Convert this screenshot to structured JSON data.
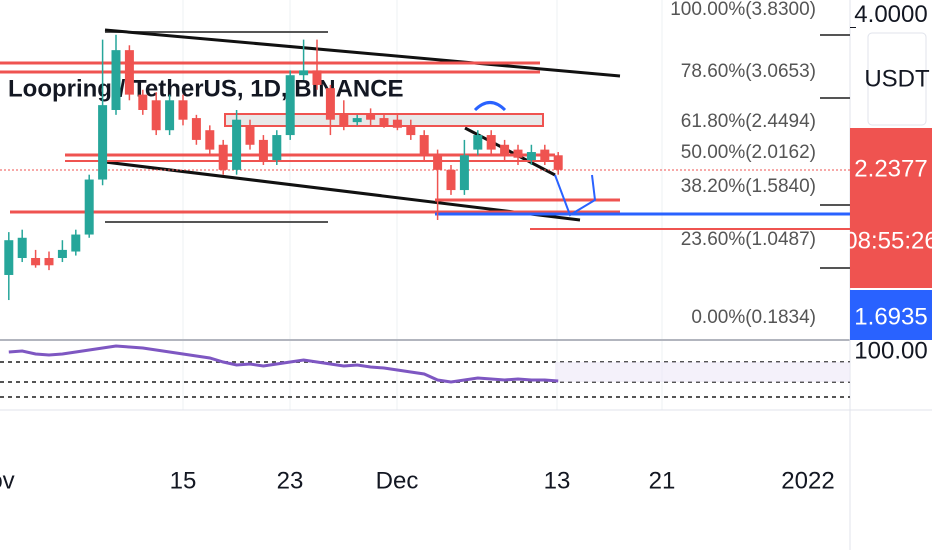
{
  "chart_data": {
    "type": "candlestick",
    "title": "Loopring / TetherUS, 1D, BINANCE",
    "ylim": [
      0.136,
      4.34
    ],
    "yticks": [
      {
        "value": 4,
        "label": "4.0000"
      }
    ],
    "currency": "USDT",
    "price_tags": [
      {
        "label": "2.2377",
        "countdown": "08:55:26"
      },
      {
        "label": "1.6935"
      }
    ],
    "rsi_tick": "100.00",
    "x_axis_labels": [
      "ov",
      "15",
      "23",
      "Dec",
      "13",
      "21",
      "2022"
    ],
    "fib_labels": [
      "100.00%(3.8300)",
      "78.60%(3.0653)",
      "61.80%(2.4494)",
      "50.00%(2.0162)",
      "38.20%(1.5840)",
      "23.60%(1.0487)",
      "0.00%(0.1834)"
    ],
    "up_color": "#26a69a",
    "down_color": "#ef5350",
    "ohlc": [
      [
        0.94,
        1.47,
        0.63,
        1.37
      ],
      [
        1.15,
        1.5,
        1.1,
        1.4
      ],
      [
        1.15,
        1.25,
        1.03,
        1.06
      ],
      [
        1.15,
        1.23,
        1.0,
        1.06
      ],
      [
        1.15,
        1.37,
        1.1,
        1.25
      ],
      [
        1.23,
        1.5,
        1.18,
        1.44
      ],
      [
        1.44,
        2.18,
        1.4,
        2.12
      ],
      [
        2.12,
        3.85,
        2.05,
        3.04
      ],
      [
        2.98,
        3.91,
        2.92,
        3.72
      ],
      [
        3.72,
        3.78,
        3.1,
        3.17
      ],
      [
        3.17,
        3.23,
        2.92,
        2.98
      ],
      [
        3.1,
        3.2,
        2.67,
        2.73
      ],
      [
        2.73,
        3.17,
        2.67,
        3.1
      ],
      [
        3.1,
        3.17,
        2.79,
        2.86
      ],
      [
        2.88,
        2.92,
        2.55,
        2.61
      ],
      [
        2.73,
        2.79,
        2.42,
        2.49
      ],
      [
        2.55,
        2.61,
        2.18,
        2.24
      ],
      [
        2.24,
        2.98,
        2.18,
        2.86
      ],
      [
        2.79,
        2.86,
        2.49,
        2.55
      ],
      [
        2.61,
        2.67,
        2.3,
        2.36
      ],
      [
        2.36,
        2.73,
        2.3,
        2.67
      ],
      [
        2.67,
        3.47,
        2.61,
        3.41
      ],
      [
        3.41,
        3.85,
        3.35,
        3.47
      ],
      [
        3.47,
        3.85,
        3.23,
        3.29
      ],
      [
        3.25,
        3.29,
        2.67,
        2.86
      ],
      [
        2.92,
        3.1,
        2.73,
        2.79
      ],
      [
        2.83,
        2.92,
        2.79,
        2.88
      ],
      [
        2.92,
        3.0,
        2.79,
        2.86
      ],
      [
        2.88,
        2.92,
        2.76,
        2.79
      ],
      [
        2.86,
        2.92,
        2.73,
        2.76
      ],
      [
        2.79,
        2.86,
        2.61,
        2.67
      ],
      [
        2.67,
        2.73,
        2.36,
        2.42
      ],
      [
        2.42,
        2.49,
        1.62,
        2.24
      ],
      [
        2.24,
        2.3,
        1.93,
        1.99
      ],
      [
        1.99,
        2.61,
        1.93,
        2.42
      ],
      [
        2.49,
        2.73,
        2.42,
        2.67
      ],
      [
        2.67,
        2.73,
        2.42,
        2.49
      ],
      [
        2.55,
        2.61,
        2.36,
        2.42
      ],
      [
        2.49,
        2.55,
        2.3,
        2.39
      ],
      [
        2.36,
        2.55,
        2.3,
        2.46
      ],
      [
        2.49,
        2.55,
        2.3,
        2.36
      ],
      [
        2.42,
        2.46,
        2.18,
        2.24
      ]
    ],
    "rsi": {
      "color": "#7e57c2",
      "ylim": [
        20,
        80
      ],
      "values": [
        68,
        69,
        66,
        65,
        66,
        68,
        70,
        72,
        74,
        73,
        72,
        70,
        68,
        66,
        64,
        62,
        58,
        55,
        56,
        54,
        56,
        58,
        60,
        58,
        56,
        54,
        55,
        53,
        52,
        50,
        48,
        46,
        40,
        38,
        40,
        42,
        41,
        40,
        41,
        40,
        40,
        39
      ]
    }
  }
}
